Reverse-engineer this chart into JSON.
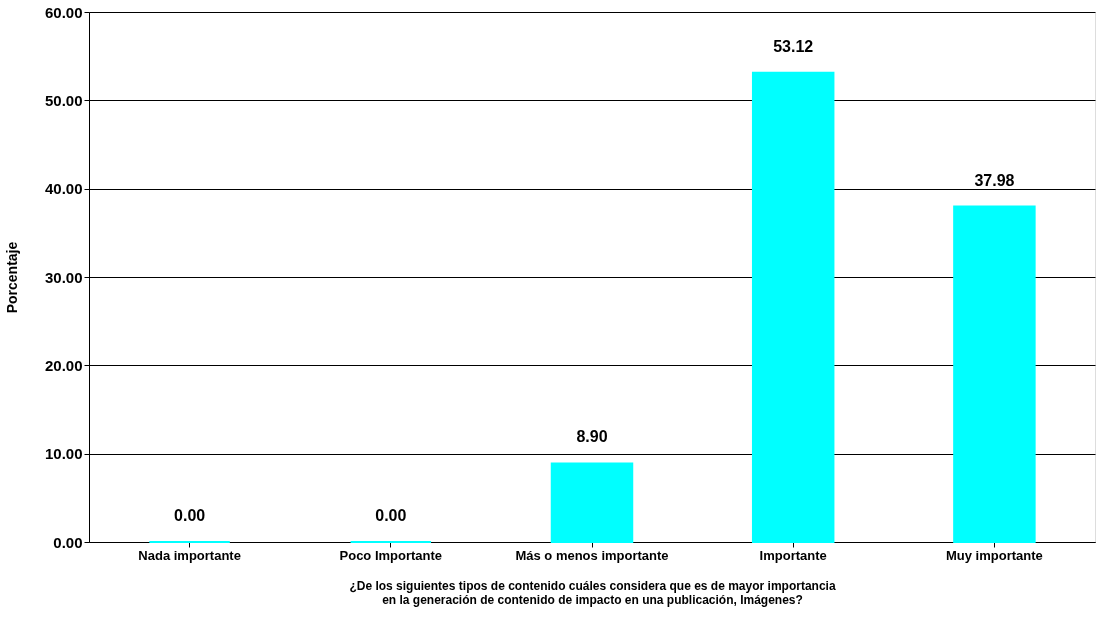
{
  "chart_data": {
    "type": "bar",
    "categories": [
      "Nada importante",
      "Poco Importante",
      "Más o menos importante",
      "Importante",
      "Muy importante"
    ],
    "values": [
      0,
      0,
      8.9,
      53.12,
      37.98
    ],
    "value_labels": [
      "0.00",
      "0.00",
      "8.90",
      "53.12",
      "37.98"
    ],
    "color": "#00ffff",
    "xlabel": "¿De los siguientes tipos de contenido cuáles considera que es de mayor importancia en la generación de contenido de impacto en una publicación, Imágenes?",
    "ylabel": "Porcentaje",
    "ylim": [
      0,
      60
    ],
    "yticks": [
      {
        "value": 0,
        "label": "0.00"
      },
      {
        "value": 10,
        "label": "10.00"
      },
      {
        "value": 20,
        "label": "20.00"
      },
      {
        "value": 30,
        "label": "30.00"
      },
      {
        "value": 40,
        "label": "40.00"
      },
      {
        "value": 50,
        "label": "50.00"
      },
      {
        "value": 60,
        "label": "60.00"
      }
    ],
    "grid": "y"
  }
}
